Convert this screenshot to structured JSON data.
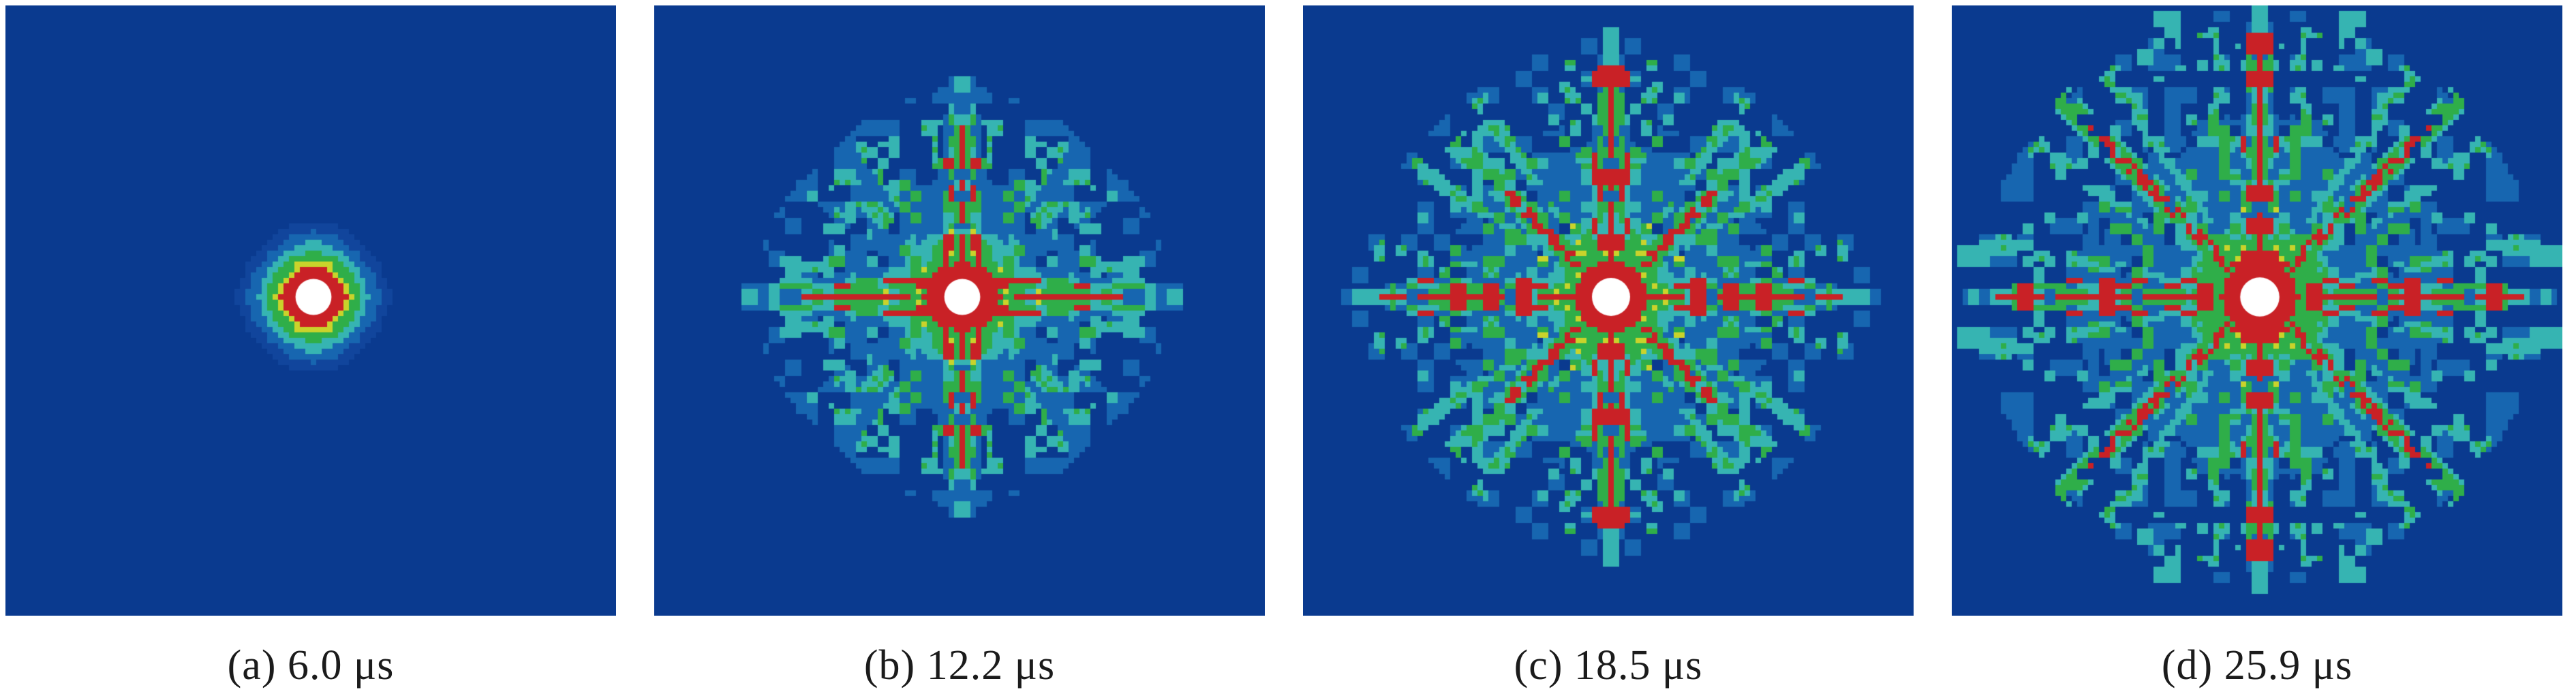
{
  "figure": {
    "type": "simulation-snapshot-sequence",
    "panel_count": 4
  },
  "palette": {
    "background": "#0a3a8f",
    "halo": "#11459c",
    "mid_blue": "#1766b0",
    "cyan": "#36b4b2",
    "green": "#2fae49",
    "yellow": "#c9d32b",
    "red": "#c92126",
    "white": "#ffffff",
    "caption_text": "#1b1b1b",
    "page_background": "#ffffff"
  },
  "panels": [
    {
      "label": "(a)",
      "time_us": 6.0,
      "caption": "(a) 6.0 μs",
      "growth": {
        "type": "disk",
        "seed": 11,
        "whiteR": 3.3,
        "rings": {
          "red": 5.8,
          "yellow": 6.8,
          "green": 8.3,
          "cyan": 10.0,
          "medblue": 12.2,
          "halo": 14.2
        }
      }
    },
    {
      "label": "(b)",
      "time_us": 12.2,
      "caption": "(b) 12.2 μs",
      "growth": {
        "type": "star",
        "seed": 23,
        "whiteR": 3.3,
        "blob": 26,
        "cyanR": 13.5,
        "greenR": 10.5,
        "redR": 6.6,
        "axisLen": 41,
        "axisRed": 32,
        "diagBand": [
          19,
          33
        ],
        "ears": [
          24,
          36
        ],
        "spokes": [
          20,
          34
        ]
      }
    },
    {
      "label": "(c)",
      "time_us": 18.5,
      "caption": "(c) 18.5 μs",
      "growth": {
        "type": "star",
        "seed": 37,
        "whiteR": 3.5,
        "blob": 32,
        "cyanR": 14.5,
        "greenR": 11.5,
        "redR": 7.0,
        "axisLen": 50,
        "axisRed": 43,
        "redSeg": true,
        "diagLen": 41,
        "diagRed": 27,
        "spokes": [
          16,
          44
        ]
      }
    },
    {
      "label": "(d)",
      "time_us": 25.9,
      "caption": "(d) 25.9 μs",
      "growth": {
        "type": "star",
        "seed": 51,
        "whiteR": 3.6,
        "blob": 36,
        "cyanR": 15,
        "greenR": 12.5,
        "redR": 7.4,
        "axisLen": 55,
        "axisRed": 49,
        "redSeg": true,
        "diagLen": 52,
        "diagRed": 44,
        "spokes": [
          16,
          50
        ],
        "edgeBlobs": [
          [
            17,
            49,
            3,
            4
          ],
          [
            52,
            8,
            4,
            3
          ],
          [
            21,
            44,
            2,
            2
          ]
        ]
      }
    }
  ]
}
